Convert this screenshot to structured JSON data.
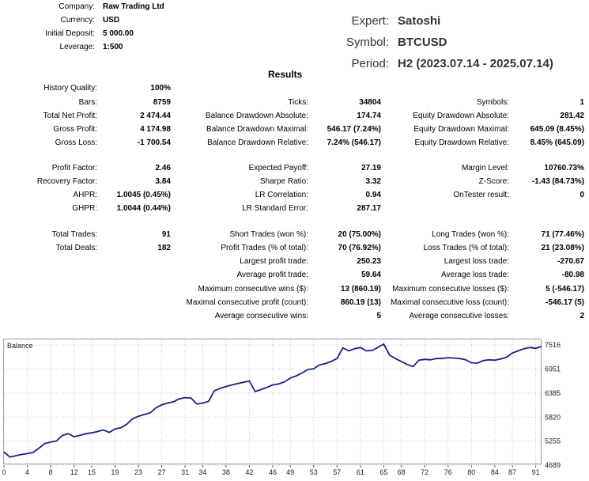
{
  "header": {
    "company_label": "Company:",
    "company_value": "Raw Trading Ltd",
    "currency_label": "Currency:",
    "currency_value": "USD",
    "deposit_label": "Initial Deposit:",
    "deposit_value": "5 000.00",
    "leverage_label": "Leverage:",
    "leverage_value": "1:500",
    "expert_label": "Expert:",
    "expert_value": "Satoshi",
    "symbol_label": "Symbol:",
    "symbol_value": "BTCUSD",
    "period_label": "Period:",
    "period_value": "H2 (2023.07.14 - 2025.07.14)"
  },
  "results": {
    "title": "Results",
    "history_quality": {
      "label": "History Quality:",
      "value": "100%"
    },
    "col1": [
      {
        "label": "Bars:",
        "value": "8759"
      },
      {
        "label": "Total Net Profit:",
        "value": "2 474.44"
      },
      {
        "label": "Gross Profit:",
        "value": "4 174.98"
      },
      {
        "label": "Gross Loss:",
        "value": "-1 700.54"
      },
      {
        "label": "Profit Factor:",
        "value": "2.46"
      },
      {
        "label": "Recovery Factor:",
        "value": "3.84"
      },
      {
        "label": "AHPR:",
        "value": "1.0045 (0.45%)"
      },
      {
        "label": "GHPR:",
        "value": "1.0044 (0.44%)"
      },
      {
        "label": "Total Trades:",
        "value": "91"
      },
      {
        "label": "Total Deals:",
        "value": "182"
      }
    ],
    "col2": [
      {
        "label": "Ticks:",
        "value": "34804"
      },
      {
        "label": "Balance Drawdown Absolute:",
        "value": "174.74"
      },
      {
        "label": "Balance Drawdown Maximal:",
        "value": "546.17 (7.24%)"
      },
      {
        "label": "Balance Drawdown Relative:",
        "value": "7.24% (546.17)"
      },
      {
        "label": "Expected Payoff:",
        "value": "27.19"
      },
      {
        "label": "Sharpe Ratio:",
        "value": "3.32"
      },
      {
        "label": "LR Correlation:",
        "value": "0.94"
      },
      {
        "label": "LR Standard Error:",
        "value": "287.17"
      },
      {
        "label": "Short Trades (won %):",
        "value": "20 (75.00%)"
      },
      {
        "label": "Profit Trades (% of total):",
        "value": "70 (76.92%)"
      },
      {
        "label": "Largest profit trade:",
        "value": "250.23"
      },
      {
        "label": "Average profit trade:",
        "value": "59.64"
      },
      {
        "label": "Maximum consecutive wins ($):",
        "value": "13 (860.19)"
      },
      {
        "label": "Maximal consecutive profit (count):",
        "value": "860.19 (13)"
      },
      {
        "label": "Average consecutive wins:",
        "value": "5"
      }
    ],
    "col3": [
      {
        "label": "Symbols:",
        "value": "1"
      },
      {
        "label": "Equity Drawdown Absolute:",
        "value": "281.42"
      },
      {
        "label": "Equity Drawdown Maximal:",
        "value": "645.09 (8.45%)"
      },
      {
        "label": "Equity Drawdown Relative:",
        "value": "8.45% (645.09)"
      },
      {
        "label": "Margin Level:",
        "value": "10760.73%"
      },
      {
        "label": "Z-Score:",
        "value": "-1.43 (84.73%)"
      },
      {
        "label": "OnTester result:",
        "value": "0"
      },
      {
        "label": "Long Trades (won %):",
        "value": "71 (77.46%)"
      },
      {
        "label": "Loss Trades (% of total):",
        "value": "21 (23.08%)"
      },
      {
        "label": "Largest loss trade:",
        "value": "-270.67"
      },
      {
        "label": "Average loss trade:",
        "value": "-80.98"
      },
      {
        "label": "Maximum consecutive losses ($):",
        "value": "5 (-546.17)"
      },
      {
        "label": "Maximal consecutive loss (count):",
        "value": "-546.17 (5)"
      },
      {
        "label": "Average consecutive losses:",
        "value": "2"
      }
    ]
  },
  "colors": {
    "line": "#1a1f8c",
    "grid": "#c8c8c8",
    "border": "#9a9a9a"
  },
  "chart_data": {
    "type": "line",
    "title": "Balance",
    "xlabel": "",
    "ylabel": "",
    "xlim": [
      0,
      92
    ],
    "ylim": [
      4689,
      7650
    ],
    "x_ticks": [
      0,
      4,
      8,
      12,
      15,
      19,
      23,
      27,
      31,
      34,
      38,
      42,
      46,
      49,
      53,
      57,
      61,
      65,
      68,
      72,
      76,
      80,
      84,
      87,
      91
    ],
    "y_ticks": [
      4689,
      5255,
      5820,
      6385,
      6951,
      7516
    ],
    "series": [
      {
        "name": "Balance",
        "x": [
          0,
          1,
          2,
          3,
          4,
          5,
          6,
          7,
          8,
          9,
          10,
          11,
          12,
          13,
          14,
          15,
          16,
          17,
          18,
          19,
          20,
          21,
          22,
          23,
          24,
          25,
          26,
          27,
          28,
          29,
          30,
          31,
          32,
          33,
          34,
          35,
          36,
          37,
          38,
          39,
          40,
          41,
          42,
          43,
          44,
          45,
          46,
          47,
          48,
          49,
          50,
          51,
          52,
          53,
          54,
          55,
          56,
          57,
          58,
          59,
          60,
          61,
          62,
          63,
          64,
          65,
          66,
          67,
          68,
          69,
          70,
          71,
          72,
          73,
          74,
          75,
          76,
          77,
          78,
          79,
          80,
          81,
          82,
          83,
          84,
          85,
          86,
          87,
          88,
          89,
          90,
          91,
          92
        ],
        "values": [
          5000,
          4880,
          4910,
          4940,
          4960,
          4990,
          5090,
          5200,
          5230,
          5260,
          5390,
          5430,
          5360,
          5390,
          5430,
          5450,
          5480,
          5520,
          5460,
          5540,
          5570,
          5650,
          5780,
          5840,
          5880,
          5920,
          6040,
          6110,
          6150,
          6180,
          6250,
          6280,
          6270,
          6130,
          6150,
          6190,
          6440,
          6500,
          6540,
          6580,
          6610,
          6640,
          6670,
          6420,
          6470,
          6520,
          6580,
          6600,
          6650,
          6740,
          6790,
          6860,
          6940,
          6960,
          7050,
          7080,
          7130,
          7200,
          7450,
          7380,
          7430,
          7460,
          7380,
          7390,
          7460,
          7540,
          7280,
          7200,
          7130,
          7060,
          7010,
          7160,
          7180,
          7170,
          7200,
          7200,
          7220,
          7210,
          7200,
          7170,
          7100,
          7090,
          7150,
          7170,
          7160,
          7190,
          7230,
          7330,
          7380,
          7430,
          7460,
          7440,
          7480
        ]
      }
    ]
  }
}
